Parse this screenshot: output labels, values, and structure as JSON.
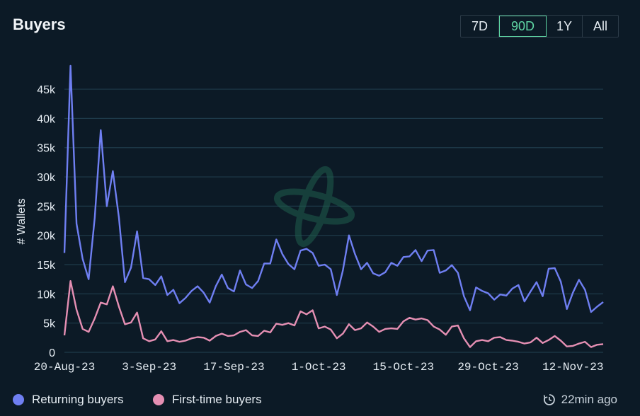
{
  "title": "Buyers",
  "range_options": [
    {
      "label": "7D",
      "active": false
    },
    {
      "label": "90D",
      "active": true
    },
    {
      "label": "1Y",
      "active": false
    },
    {
      "label": "All",
      "active": false
    }
  ],
  "updated_text": "22min ago",
  "colors": {
    "returning": "#6f7ff2",
    "first_time": "#e58fb3",
    "accent": "#5fd6a4",
    "grid": "#1e3a4a"
  },
  "chart_data": {
    "type": "line",
    "xlabel": "",
    "ylabel": "# Wallets",
    "ylim": [
      0,
      49000
    ],
    "yticks": [
      0,
      5000,
      10000,
      15000,
      20000,
      25000,
      30000,
      35000,
      40000,
      45000
    ],
    "ytick_labels": [
      "0",
      "5k",
      "10k",
      "15k",
      "20k",
      "25k",
      "30k",
      "35k",
      "40k",
      "45k"
    ],
    "xtick_labels": [
      "20-Aug-23",
      "3-Sep-23",
      "17-Sep-23",
      "1-Oct-23",
      "15-Oct-23",
      "29-Oct-23",
      "12-Nov-23"
    ],
    "x_start": "2023-08-20",
    "x_end": "2023-11-17",
    "grid": true,
    "legend_position": "bottom-left",
    "series": [
      {
        "name": "Returning buyers",
        "values": [
          17000,
          49000,
          22000,
          16000,
          12500,
          23000,
          38000,
          25000,
          31000,
          23000,
          12000,
          14500,
          20700,
          12700,
          12500,
          11500,
          13000,
          9800,
          10700,
          8400,
          9300,
          10500,
          11300,
          10200,
          8500,
          11300,
          13300,
          11000,
          10400,
          14000,
          11600,
          11000,
          12200,
          15200,
          15200,
          19300,
          16800,
          15100,
          14200,
          17400,
          17700,
          17000,
          14800,
          15000,
          14200,
          9800,
          14000,
          20000,
          16800,
          14200,
          15300,
          13500,
          13100,
          13700,
          15300,
          14800,
          16300,
          16400,
          17500,
          15600,
          17400,
          17500,
          13600,
          14000,
          14900,
          13600,
          9600,
          7200,
          11100,
          10500,
          10100,
          9000,
          9900,
          9700,
          10900,
          11500,
          8700,
          10400,
          12000,
          9600,
          14300,
          14400,
          12100,
          7400,
          10200,
          12400,
          10700,
          6900,
          7800,
          8600
        ]
      },
      {
        "name": "First-time buyers",
        "values": [
          2900,
          12200,
          7300,
          4000,
          3500,
          5800,
          8500,
          8200,
          11300,
          7800,
          4800,
          5100,
          6800,
          2400,
          1900,
          2200,
          3600,
          1900,
          2100,
          1800,
          2000,
          2400,
          2600,
          2500,
          2000,
          2800,
          3200,
          2800,
          2900,
          3500,
          3800,
          2900,
          2800,
          3700,
          3400,
          4900,
          4700,
          5000,
          4600,
          7000,
          6500,
          7200,
          4100,
          4400,
          3900,
          2400,
          3200,
          4800,
          3800,
          4100,
          5100,
          4400,
          3500,
          4000,
          4100,
          4000,
          5300,
          5900,
          5600,
          5800,
          5500,
          4400,
          3900,
          3000,
          4400,
          4600,
          2400,
          900,
          1900,
          2100,
          1900,
          2500,
          2600,
          2100,
          2000,
          1800,
          1500,
          1700,
          2500,
          1600,
          2100,
          2800,
          2000,
          1000,
          1100,
          1500,
          1800,
          900,
          1300,
          1400
        ]
      }
    ]
  }
}
